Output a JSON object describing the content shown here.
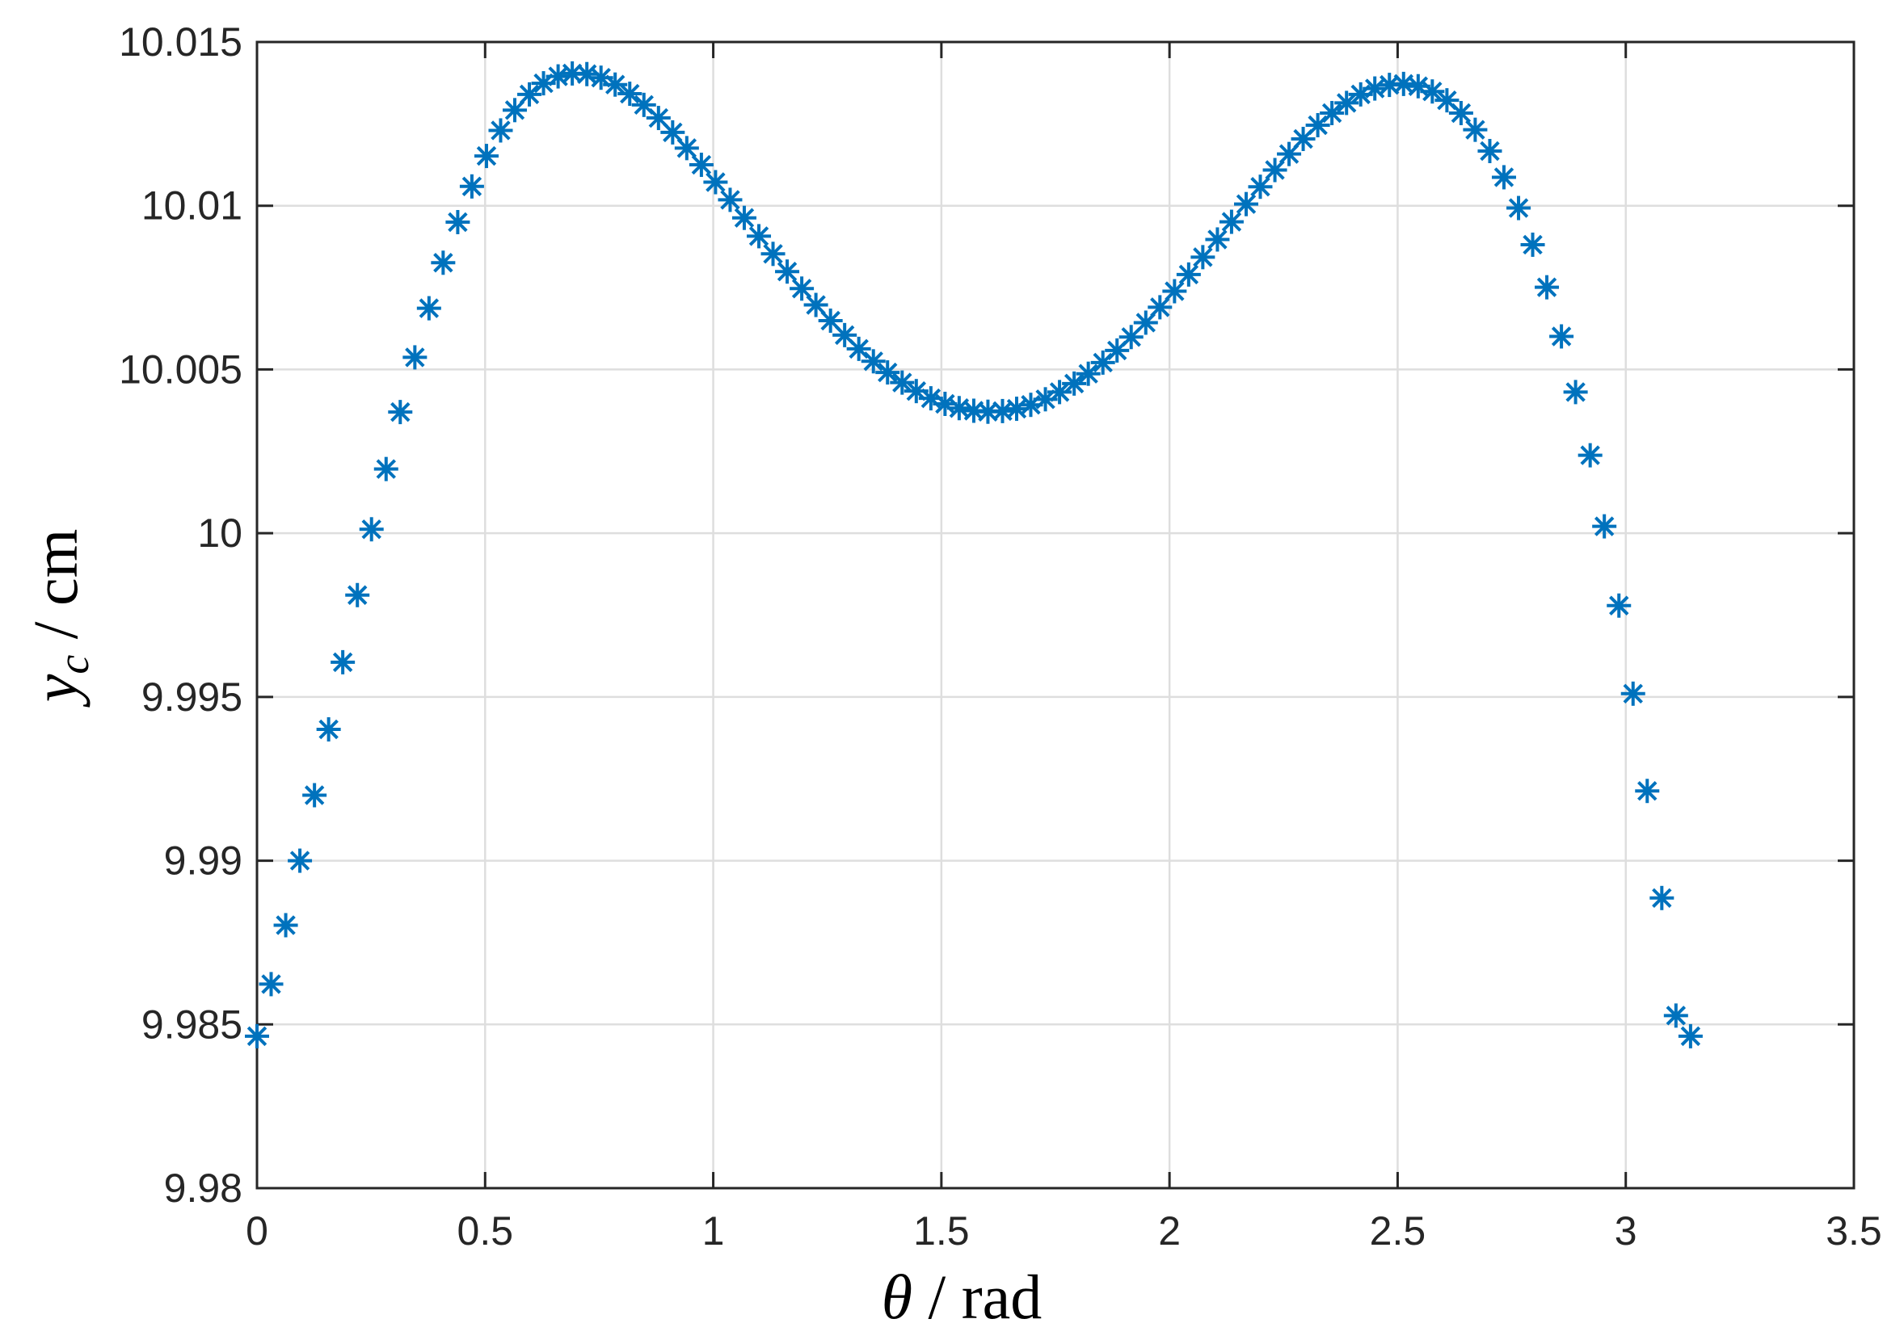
{
  "chart_data": {
    "type": "scatter",
    "xlabel": {
      "symbol": "θ",
      "text": " / rad"
    },
    "ylabel": {
      "symbol": "y",
      "subscript": "c",
      "text": " / cm"
    },
    "xlim": [
      0,
      3.5
    ],
    "ylim": [
      9.98,
      10.015
    ],
    "xticks": [
      0,
      0.5,
      1,
      1.5,
      2,
      2.5,
      3,
      3.5
    ],
    "xtick_labels": [
      "0",
      "0.5",
      "1",
      "1.5",
      "2",
      "2.5",
      "3",
      "3.5"
    ],
    "yticks": [
      9.98,
      9.985,
      9.99,
      9.995,
      10,
      10.005,
      10.01,
      10.015
    ],
    "ytick_labels": [
      "9.98",
      "9.985",
      "9.99",
      "9.995",
      "10",
      "10.005",
      "10.01",
      "10.015"
    ],
    "grid": true,
    "marker": "asterisk",
    "color": "#0072BD",
    "series": [
      {
        "x": [
          0.0,
          0.031,
          0.063,
          0.094,
          0.126,
          0.157,
          0.188,
          0.22,
          0.251,
          0.283,
          0.314,
          0.346,
          0.377,
          0.408,
          0.44,
          0.471,
          0.503,
          0.534,
          0.565,
          0.597,
          0.628,
          0.66,
          0.691,
          0.723,
          0.754,
          0.785,
          0.817,
          0.848,
          0.88,
          0.911,
          0.942,
          0.974,
          1.005,
          1.037,
          1.068,
          1.1,
          1.131,
          1.162,
          1.194,
          1.225,
          1.257,
          1.288,
          1.319,
          1.351,
          1.382,
          1.414,
          1.445,
          1.477,
          1.508,
          1.539,
          1.571,
          1.602,
          1.634,
          1.665,
          1.696,
          1.728,
          1.759,
          1.791,
          1.822,
          1.854,
          1.885,
          1.916,
          1.948,
          1.979,
          2.011,
          2.042,
          2.073,
          2.105,
          2.136,
          2.168,
          2.199,
          2.231,
          2.262,
          2.293,
          2.325,
          2.356,
          2.388,
          2.419,
          2.45,
          2.482,
          2.513,
          2.545,
          2.576,
          2.608,
          2.639,
          2.67,
          2.702,
          2.733,
          2.765,
          2.796,
          2.827,
          2.859,
          2.89,
          2.922,
          2.953,
          2.985,
          3.016,
          3.047,
          3.079,
          3.11,
          3.142
        ],
        "y": [
          9.98464,
          9.98623,
          9.98803,
          9.99,
          9.992,
          9.99401,
          9.99606,
          9.99811,
          10.00012,
          10.00196,
          10.0037,
          10.00537,
          10.00687,
          10.00826,
          10.0095,
          10.01059,
          10.01152,
          10.0123,
          10.01292,
          10.0134,
          10.01374,
          10.01395,
          10.01404,
          10.01402,
          10.01391,
          10.0137,
          10.01342,
          10.01308,
          10.01268,
          10.01224,
          10.01176,
          10.01125,
          10.01072,
          10.01018,
          10.00963,
          10.00907,
          10.00853,
          10.00799,
          10.00747,
          10.00697,
          10.00649,
          10.00605,
          10.00563,
          10.00525,
          10.00491,
          10.0046,
          10.00434,
          10.00412,
          10.00395,
          10.00382,
          10.00374,
          10.00371,
          10.00373,
          10.0038,
          10.00392,
          10.00409,
          10.00431,
          10.00457,
          10.00487,
          10.00521,
          10.00558,
          10.00599,
          10.00643,
          10.0069,
          10.00739,
          10.0079,
          10.00843,
          10.00897,
          10.00951,
          10.01005,
          10.01058,
          10.01109,
          10.01158,
          10.01204,
          10.01246,
          10.01283,
          10.01314,
          10.0134,
          10.01358,
          10.01369,
          10.01372,
          10.01365,
          10.01349,
          10.01322,
          10.01283,
          10.01232,
          10.01167,
          10.01087,
          10.00993,
          10.00881,
          10.00751,
          10.00601,
          10.00431,
          10.00238,
          10.00021,
          9.99779,
          9.9951,
          9.99213,
          9.98886,
          9.98527,
          9.98464
        ]
      }
    ]
  }
}
